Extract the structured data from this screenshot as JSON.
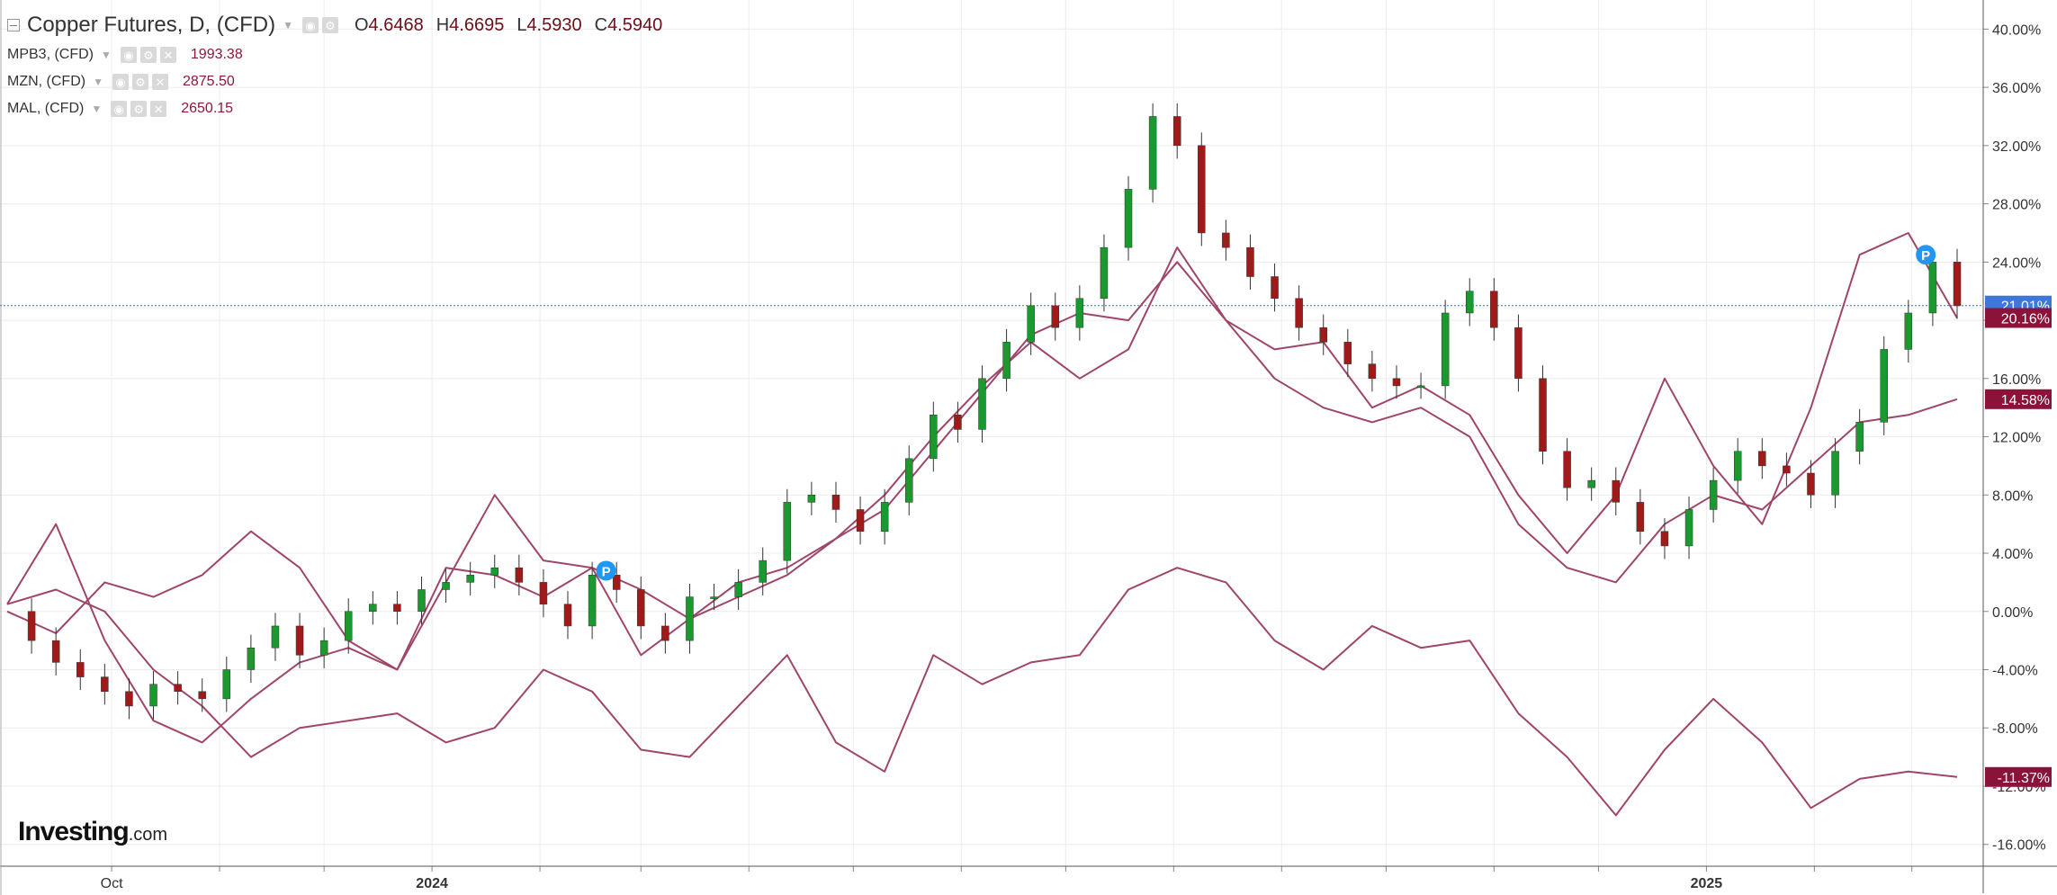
{
  "legend": {
    "main": {
      "title": "Copper Futures, D, (CFD)",
      "open_label": "O",
      "open": "4.6468",
      "high_label": "H",
      "high": "4.6695",
      "low_label": "L",
      "low": "4.5930",
      "close_label": "C",
      "close": "4.5940"
    },
    "studies": [
      {
        "label": "MPB3, (CFD)",
        "value": "1993.38"
      },
      {
        "label": "MZN, (CFD)",
        "value": "2875.50"
      },
      {
        "label": "MAL, (CFD)",
        "value": "2650.15"
      }
    ]
  },
  "logo": {
    "brand": "Investing",
    "domain": ".com"
  },
  "colors": {
    "up": "#1a9a2e",
    "down": "#a11a1a",
    "line": "#a0456a",
    "grid": "#ececec",
    "axis": "#333333",
    "last_blue": "#3f77d8",
    "last_red": "#8b1238"
  },
  "chart_data": {
    "type": "line",
    "ylabel": "",
    "y_axis": {
      "unit": "%",
      "position": "right",
      "ylim": [
        -17.5,
        42
      ],
      "ticks": [
        "40.00%",
        "36.00%",
        "32.00%",
        "28.00%",
        "24.00%",
        "20.00%",
        "16.00%",
        "12.00%",
        "8.00%",
        "4.00%",
        "0.00%",
        "-4.00%",
        "-8.00%",
        "-12.00%",
        "-16.00%"
      ],
      "tick_values": [
        40,
        36,
        32,
        28,
        24,
        20,
        16,
        12,
        8,
        4,
        0,
        -4,
        -8,
        -12,
        -16
      ]
    },
    "x_axis": {
      "range": [
        "2023-09-01",
        "2025-03-14"
      ],
      "tick_labels": [
        {
          "label": "Oct",
          "date": "2023-10-01"
        },
        {
          "label": "2024",
          "date": "2024-01-01"
        },
        {
          "label": "2025",
          "date": "2025-01-01"
        }
      ],
      "minor_dates": [
        "2023-11-01",
        "2023-12-01",
        "2024-02-01",
        "2024-03-01",
        "2024-04-01",
        "2024-05-01",
        "2024-06-01",
        "2024-07-01",
        "2024-08-01",
        "2024-09-01",
        "2024-10-01",
        "2024-11-01",
        "2024-12-01",
        "2025-02-01",
        "2025-03-01"
      ]
    },
    "grid": true,
    "reference_line": {
      "value": 21.01,
      "style": "dotted",
      "color": "#3f77d8"
    },
    "last_value_badges": [
      {
        "text": "21.01%",
        "value": 21.01,
        "color": "#3f77d8"
      },
      {
        "text": "20.16%",
        "value": 20.16,
        "color": "#8b1238"
      },
      {
        "text": "14.58%",
        "value": 14.58,
        "color": "#8b1238"
      },
      {
        "text": "-11.37%",
        "value": -11.37,
        "color": "#8b1238"
      }
    ],
    "markers": [
      {
        "text": "P",
        "date": "2024-02-20",
        "value": 2.8
      },
      {
        "text": "P",
        "date": "2025-03-05",
        "value": 24.5
      }
    ],
    "candles_series": {
      "name": "Copper Futures",
      "points": [
        {
          "date": "2023-09-01",
          "close": 0.0
        },
        {
          "date": "2023-09-08",
          "close": -2.0
        },
        {
          "date": "2023-09-15",
          "close": -3.5
        },
        {
          "date": "2023-09-22",
          "close": -4.5
        },
        {
          "date": "2023-09-29",
          "close": -5.5
        },
        {
          "date": "2023-10-06",
          "close": -6.5
        },
        {
          "date": "2023-10-13",
          "close": -5.0
        },
        {
          "date": "2023-10-20",
          "close": -5.5
        },
        {
          "date": "2023-10-27",
          "close": -6.0
        },
        {
          "date": "2023-11-03",
          "close": -4.0
        },
        {
          "date": "2023-11-10",
          "close": -2.5
        },
        {
          "date": "2023-11-17",
          "close": -1.0
        },
        {
          "date": "2023-11-24",
          "close": -3.0
        },
        {
          "date": "2023-12-01",
          "close": -2.0
        },
        {
          "date": "2023-12-08",
          "close": 0.0
        },
        {
          "date": "2023-12-15",
          "close": 0.5
        },
        {
          "date": "2023-12-22",
          "close": 0.0
        },
        {
          "date": "2023-12-29",
          "close": 1.5
        },
        {
          "date": "2024-01-05",
          "close": 2.0
        },
        {
          "date": "2024-01-12",
          "close": 2.5
        },
        {
          "date": "2024-01-19",
          "close": 3.0
        },
        {
          "date": "2024-01-26",
          "close": 2.0
        },
        {
          "date": "2024-02-02",
          "close": 0.5
        },
        {
          "date": "2024-02-09",
          "close": -1.0
        },
        {
          "date": "2024-02-16",
          "close": 2.5
        },
        {
          "date": "2024-02-23",
          "close": 1.5
        },
        {
          "date": "2024-03-01",
          "close": -1.0
        },
        {
          "date": "2024-03-08",
          "close": -2.0
        },
        {
          "date": "2024-03-15",
          "close": 1.0
        },
        {
          "date": "2024-03-22",
          "close": 1.0
        },
        {
          "date": "2024-03-29",
          "close": 2.0
        },
        {
          "date": "2024-04-05",
          "close": 3.5
        },
        {
          "date": "2024-04-12",
          "close": 7.5
        },
        {
          "date": "2024-04-19",
          "close": 8.0
        },
        {
          "date": "2024-04-26",
          "close": 7.0
        },
        {
          "date": "2024-05-03",
          "close": 5.5
        },
        {
          "date": "2024-05-10",
          "close": 7.5
        },
        {
          "date": "2024-05-17",
          "close": 10.5
        },
        {
          "date": "2024-05-24",
          "close": 13.5
        },
        {
          "date": "2024-05-31",
          "close": 12.5
        },
        {
          "date": "2024-06-07",
          "close": 16.0
        },
        {
          "date": "2024-06-14",
          "close": 18.5
        },
        {
          "date": "2024-06-21",
          "close": 21.0
        },
        {
          "date": "2024-06-28",
          "close": 19.5
        },
        {
          "date": "2024-07-05",
          "close": 21.5
        },
        {
          "date": "2024-07-12",
          "close": 25.0
        },
        {
          "date": "2024-07-19",
          "close": 29.0
        },
        {
          "date": "2024-07-26",
          "close": 34.0
        },
        {
          "date": "2024-08-02",
          "close": 32.0
        },
        {
          "date": "2024-08-09",
          "close": 26.0
        },
        {
          "date": "2024-08-16",
          "close": 25.0
        },
        {
          "date": "2024-08-23",
          "close": 23.0
        },
        {
          "date": "2024-08-30",
          "close": 21.5
        },
        {
          "date": "2024-09-06",
          "close": 19.5
        },
        {
          "date": "2024-09-13",
          "close": 18.5
        },
        {
          "date": "2024-09-20",
          "close": 17.0
        },
        {
          "date": "2024-09-27",
          "close": 16.0
        },
        {
          "date": "2024-10-04",
          "close": 15.5
        },
        {
          "date": "2024-10-11",
          "close": 15.5
        },
        {
          "date": "2024-10-18",
          "close": 20.5
        },
        {
          "date": "2024-10-25",
          "close": 22.0
        },
        {
          "date": "2024-11-01",
          "close": 19.5
        },
        {
          "date": "2024-11-08",
          "close": 16.0
        },
        {
          "date": "2024-11-15",
          "close": 11.0
        },
        {
          "date": "2024-11-22",
          "close": 8.5
        },
        {
          "date": "2024-11-29",
          "close": 9.0
        },
        {
          "date": "2024-12-06",
          "close": 7.5
        },
        {
          "date": "2024-12-13",
          "close": 5.5
        },
        {
          "date": "2024-12-20",
          "close": 4.5
        },
        {
          "date": "2024-12-27",
          "close": 7.0
        },
        {
          "date": "2025-01-03",
          "close": 9.0
        },
        {
          "date": "2025-01-10",
          "close": 11.0
        },
        {
          "date": "2025-01-17",
          "close": 10.0
        },
        {
          "date": "2025-01-24",
          "close": 9.5
        },
        {
          "date": "2025-01-31",
          "close": 8.0
        },
        {
          "date": "2025-02-07",
          "close": 11.0
        },
        {
          "date": "2025-02-14",
          "close": 13.0
        },
        {
          "date": "2025-02-21",
          "close": 18.0
        },
        {
          "date": "2025-02-28",
          "close": 20.5
        },
        {
          "date": "2025-03-07",
          "close": 24.0
        },
        {
          "date": "2025-03-14",
          "close": 21.0
        }
      ]
    },
    "series": [
      {
        "name": "MPB3, (CFD)",
        "points": [
          [
            "2023-09-01",
            0.5
          ],
          [
            "2023-09-15",
            6.0
          ],
          [
            "2023-09-29",
            -2.0
          ],
          [
            "2023-10-13",
            -7.5
          ],
          [
            "2023-10-27",
            -9.0
          ],
          [
            "2023-11-10",
            -6.0
          ],
          [
            "2023-11-24",
            -3.5
          ],
          [
            "2023-12-08",
            -2.5
          ],
          [
            "2023-12-22",
            -4.0
          ],
          [
            "2024-01-05",
            3.0
          ],
          [
            "2024-01-19",
            2.5
          ],
          [
            "2024-02-02",
            1.0
          ],
          [
            "2024-02-16",
            3.0
          ],
          [
            "2024-03-01",
            -3.0
          ],
          [
            "2024-03-15",
            -0.5
          ],
          [
            "2024-03-29",
            1.0
          ],
          [
            "2024-04-12",
            2.5
          ],
          [
            "2024-04-26",
            5.0
          ],
          [
            "2024-05-10",
            7.0
          ],
          [
            "2024-05-24",
            11.0
          ],
          [
            "2024-06-07",
            15.0
          ],
          [
            "2024-06-21",
            19.0
          ],
          [
            "2024-07-05",
            20.5
          ],
          [
            "2024-07-19",
            20.0
          ],
          [
            "2024-08-02",
            24.0
          ],
          [
            "2024-08-16",
            20.0
          ],
          [
            "2024-08-30",
            16.0
          ],
          [
            "2024-09-13",
            14.0
          ],
          [
            "2024-09-27",
            13.0
          ],
          [
            "2024-10-11",
            14.0
          ],
          [
            "2024-10-25",
            12.0
          ],
          [
            "2024-11-08",
            6.0
          ],
          [
            "2024-11-22",
            3.0
          ],
          [
            "2024-12-06",
            2.0
          ],
          [
            "2024-12-20",
            6.0
          ],
          [
            "2025-01-03",
            8.0
          ],
          [
            "2025-01-17",
            7.0
          ],
          [
            "2025-01-31",
            10.0
          ],
          [
            "2025-02-14",
            13.0
          ],
          [
            "2025-02-28",
            13.5
          ],
          [
            "2025-03-14",
            14.58
          ]
        ]
      },
      {
        "name": "MZN, (CFD)",
        "points": [
          [
            "2023-09-01",
            0.0
          ],
          [
            "2023-09-15",
            -1.5
          ],
          [
            "2023-09-29",
            2.0
          ],
          [
            "2023-10-13",
            1.0
          ],
          [
            "2023-10-27",
            2.5
          ],
          [
            "2023-11-10",
            5.5
          ],
          [
            "2023-11-24",
            3.0
          ],
          [
            "2023-12-08",
            -2.0
          ],
          [
            "2023-12-22",
            -4.0
          ],
          [
            "2024-01-05",
            2.0
          ],
          [
            "2024-01-19",
            8.0
          ],
          [
            "2024-02-02",
            3.5
          ],
          [
            "2024-02-16",
            3.0
          ],
          [
            "2024-03-01",
            1.5
          ],
          [
            "2024-03-15",
            -0.5
          ],
          [
            "2024-03-29",
            2.0
          ],
          [
            "2024-04-12",
            3.0
          ],
          [
            "2024-04-26",
            5.0
          ],
          [
            "2024-05-10",
            8.0
          ],
          [
            "2024-05-24",
            12.0
          ],
          [
            "2024-06-07",
            15.5
          ],
          [
            "2024-06-21",
            18.5
          ],
          [
            "2024-07-05",
            16.0
          ],
          [
            "2024-07-19",
            18.0
          ],
          [
            "2024-08-02",
            25.0
          ],
          [
            "2024-08-16",
            20.0
          ],
          [
            "2024-08-30",
            18.0
          ],
          [
            "2024-09-13",
            18.5
          ],
          [
            "2024-09-27",
            14.0
          ],
          [
            "2024-10-11",
            15.5
          ],
          [
            "2024-10-25",
            13.5
          ],
          [
            "2024-11-08",
            8.0
          ],
          [
            "2024-11-22",
            4.0
          ],
          [
            "2024-12-06",
            8.0
          ],
          [
            "2024-12-20",
            16.0
          ],
          [
            "2025-01-03",
            10.0
          ],
          [
            "2025-01-17",
            6.0
          ],
          [
            "2025-01-31",
            14.0
          ],
          [
            "2025-02-14",
            24.5
          ],
          [
            "2025-02-28",
            26.0
          ],
          [
            "2025-03-14",
            20.16
          ]
        ]
      },
      {
        "name": "MAL, (CFD)",
        "points": [
          [
            "2023-09-01",
            0.5
          ],
          [
            "2023-09-15",
            1.5
          ],
          [
            "2023-09-29",
            0.0
          ],
          [
            "2023-10-13",
            -4.0
          ],
          [
            "2023-10-27",
            -6.5
          ],
          [
            "2023-11-10",
            -10.0
          ],
          [
            "2023-11-24",
            -8.0
          ],
          [
            "2023-12-08",
            -7.5
          ],
          [
            "2023-12-22",
            -7.0
          ],
          [
            "2024-01-05",
            -9.0
          ],
          [
            "2024-01-19",
            -8.0
          ],
          [
            "2024-02-02",
            -4.0
          ],
          [
            "2024-02-16",
            -5.5
          ],
          [
            "2024-03-01",
            -9.5
          ],
          [
            "2024-03-15",
            -10.0
          ],
          [
            "2024-03-29",
            -6.5
          ],
          [
            "2024-04-12",
            -3.0
          ],
          [
            "2024-04-26",
            -9.0
          ],
          [
            "2024-05-10",
            -11.0
          ],
          [
            "2024-05-24",
            -3.0
          ],
          [
            "2024-06-07",
            -5.0
          ],
          [
            "2024-06-21",
            -3.5
          ],
          [
            "2024-07-05",
            -3.0
          ],
          [
            "2024-07-19",
            1.5
          ],
          [
            "2024-08-02",
            3.0
          ],
          [
            "2024-08-16",
            2.0
          ],
          [
            "2024-08-30",
            -2.0
          ],
          [
            "2024-09-13",
            -4.0
          ],
          [
            "2024-09-27",
            -1.0
          ],
          [
            "2024-10-11",
            -2.5
          ],
          [
            "2024-10-25",
            -2.0
          ],
          [
            "2024-11-08",
            -7.0
          ],
          [
            "2024-11-22",
            -10.0
          ],
          [
            "2024-12-06",
            -14.0
          ],
          [
            "2024-12-20",
            -9.5
          ],
          [
            "2025-01-03",
            -6.0
          ],
          [
            "2025-01-17",
            -9.0
          ],
          [
            "2025-01-31",
            -13.5
          ],
          [
            "2025-02-14",
            -11.5
          ],
          [
            "2025-02-28",
            -11.0
          ],
          [
            "2025-03-14",
            -11.37
          ]
        ]
      }
    ]
  }
}
